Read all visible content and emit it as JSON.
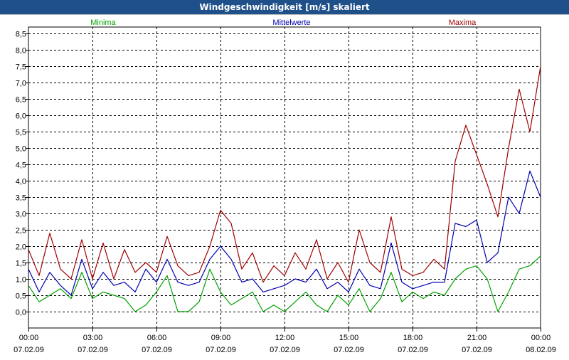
{
  "window": {
    "title": "Windgeschwindigkeit [m/s] skaliert"
  },
  "chart_data": {
    "type": "line",
    "title": "Windgeschwindigkeit [m/s] skaliert",
    "xlabel": "",
    "ylabel": "",
    "ylim": [
      -0.5,
      8.7
    ],
    "yticks": [
      "8,5",
      "8,0",
      "7,5",
      "7,0",
      "6,5",
      "6,0",
      "5,5",
      "5,0",
      "4,5",
      "4,0",
      "3,5",
      "3,0",
      "2,5",
      "2,0",
      "1,5",
      "1,0",
      "0,5",
      "0,0"
    ],
    "ytick_values": [
      8.5,
      8.0,
      7.5,
      7.0,
      6.5,
      6.0,
      5.5,
      5.0,
      4.5,
      4.0,
      3.5,
      3.0,
      2.5,
      2.0,
      1.5,
      1.0,
      0.5,
      0.0
    ],
    "xticks": [
      {
        "time": "00:00",
        "date": "07.02.09"
      },
      {
        "time": "03:00",
        "date": "07.02.09"
      },
      {
        "time": "06:00",
        "date": "07.02.09"
      },
      {
        "time": "09:00",
        "date": "07.02.09"
      },
      {
        "time": "12:00",
        "date": "07.02.09"
      },
      {
        "time": "15:00",
        "date": "07.02.09"
      },
      {
        "time": "18:00",
        "date": "07.02.09"
      },
      {
        "time": "21:00",
        "date": "07.02.09"
      },
      {
        "time": "00:00",
        "date": "08.02.09"
      }
    ],
    "x_hours_range": [
      0,
      24
    ],
    "grid": true,
    "series": [
      {
        "name": "Minima",
        "color": "#00a000",
        "x": [
          0,
          0.5,
          1,
          1.5,
          2,
          2.5,
          3,
          3.5,
          4,
          4.5,
          5,
          5.5,
          6,
          6.5,
          7,
          7.5,
          8,
          8.5,
          9,
          9.5,
          10,
          10.5,
          11,
          11.5,
          12,
          12.5,
          13,
          13.5,
          14,
          14.5,
          15,
          15.5,
          16,
          16.5,
          17,
          17.5,
          18,
          18.5,
          19,
          19.5,
          20,
          20.5,
          21,
          21.5,
          22,
          22.5,
          23,
          23.5,
          24
        ],
        "values": [
          0.8,
          0.3,
          0.5,
          0.7,
          0.4,
          1.2,
          0.4,
          0.6,
          0.5,
          0.4,
          0.0,
          0.2,
          0.6,
          1.1,
          0.0,
          0.0,
          0.3,
          1.3,
          0.6,
          0.2,
          0.4,
          0.6,
          0.0,
          0.2,
          0.0,
          0.3,
          0.6,
          0.2,
          0.0,
          0.5,
          0.2,
          0.7,
          0.0,
          0.4,
          1.2,
          0.3,
          0.6,
          0.4,
          0.6,
          0.5,
          1.0,
          1.3,
          1.4,
          1.0,
          0.0,
          0.6,
          1.3,
          1.4,
          1.7
        ]
      },
      {
        "name": "Mittelwerte",
        "color": "#0000b0",
        "x": [
          0,
          0.5,
          1,
          1.5,
          2,
          2.5,
          3,
          3.5,
          4,
          4.5,
          5,
          5.5,
          6,
          6.5,
          7,
          7.5,
          8,
          8.5,
          9,
          9.5,
          10,
          10.5,
          11,
          11.5,
          12,
          12.5,
          13,
          13.5,
          14,
          14.5,
          15,
          15.5,
          16,
          16.5,
          17,
          17.5,
          18,
          18.5,
          19,
          19.5,
          20,
          20.5,
          21,
          21.5,
          22,
          22.5,
          23,
          23.5,
          24
        ],
        "values": [
          1.3,
          0.6,
          1.2,
          0.8,
          0.5,
          1.6,
          0.7,
          1.2,
          0.8,
          0.9,
          0.6,
          1.3,
          0.9,
          1.6,
          0.9,
          0.8,
          0.9,
          1.6,
          2.0,
          1.6,
          0.9,
          1.0,
          0.6,
          0.7,
          0.8,
          1.0,
          0.9,
          1.3,
          0.7,
          0.9,
          0.6,
          1.3,
          0.8,
          0.7,
          2.1,
          0.9,
          0.7,
          0.8,
          0.9,
          0.9,
          2.7,
          2.6,
          2.8,
          1.5,
          1.8,
          3.5,
          3.0,
          4.3,
          3.5
        ]
      },
      {
        "name": "Maxima",
        "color": "#a00000",
        "x": [
          0,
          0.5,
          1,
          1.5,
          2,
          2.5,
          3,
          3.5,
          4,
          4.5,
          5,
          5.5,
          6,
          6.5,
          7,
          7.5,
          8,
          8.5,
          9,
          9.5,
          10,
          10.5,
          11,
          11.5,
          12,
          12.5,
          13,
          13.5,
          14,
          14.5,
          15,
          15.5,
          16,
          16.5,
          17,
          17.5,
          18,
          18.5,
          19,
          19.5,
          20,
          20.5,
          21,
          21.5,
          22,
          22.5,
          23,
          23.5,
          24
        ],
        "values": [
          1.9,
          1.1,
          2.4,
          1.3,
          1.0,
          2.2,
          1.0,
          2.1,
          1.0,
          1.9,
          1.2,
          1.5,
          1.2,
          2.3,
          1.4,
          1.1,
          1.2,
          2.0,
          3.1,
          2.7,
          1.3,
          1.8,
          0.9,
          1.4,
          1.1,
          1.8,
          1.3,
          2.2,
          1.0,
          1.5,
          0.9,
          2.5,
          1.5,
          1.2,
          2.9,
          1.3,
          1.1,
          1.2,
          1.6,
          1.3,
          4.6,
          5.7,
          4.8,
          3.9,
          2.9,
          5.0,
          6.8,
          5.5,
          7.5
        ]
      }
    ]
  }
}
